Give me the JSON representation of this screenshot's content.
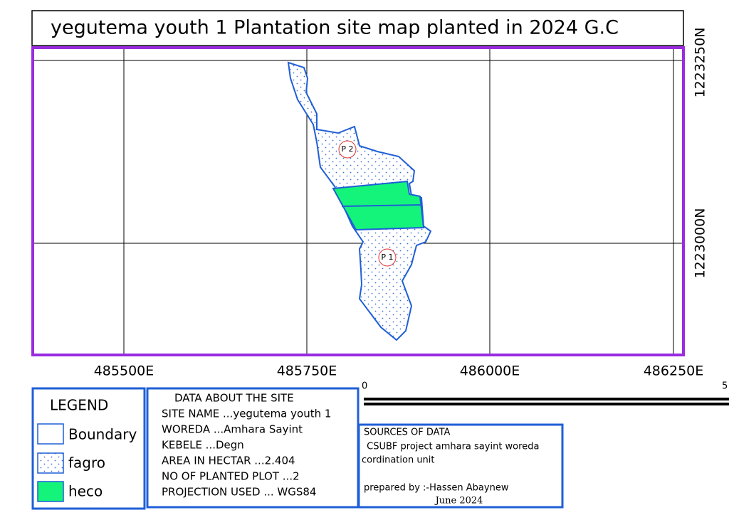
{
  "title": "yegutema youth 1 Plantation site map planted in 2024 G.C",
  "map": {
    "x_labels": [
      "485500E",
      "485750E",
      "486000E",
      "486250E"
    ],
    "y_labels": [
      "1223250N",
      "1223000N"
    ],
    "plot_labels": [
      "P 2",
      "P 1"
    ]
  },
  "legend": {
    "title": "LEGEND",
    "items": [
      "Boundary",
      "fagro",
      "heco"
    ]
  },
  "site_data": {
    "title": "DATA ABOUT THE SITE",
    "lines": [
      "SITE NAME ...yegutema youth 1",
      "WOREDA ...Amhara Sayint",
      "KEBELE ...Degn",
      "AREA IN HECTAR ...2.404",
      "NO OF PLANTED PLOT ...2",
      "PROJECTION USED ... WGS84"
    ]
  },
  "scale": {
    "labels": [
      "0",
      "5"
    ]
  },
  "sources": {
    "title": "SOURCES OF DATA",
    "lines": [
      " CSUBF project amhara sayint woreda",
      "cordination unit"
    ],
    "prepared_by": "prepared by :-Hassen Abaynew",
    "date": "June 2024"
  }
}
